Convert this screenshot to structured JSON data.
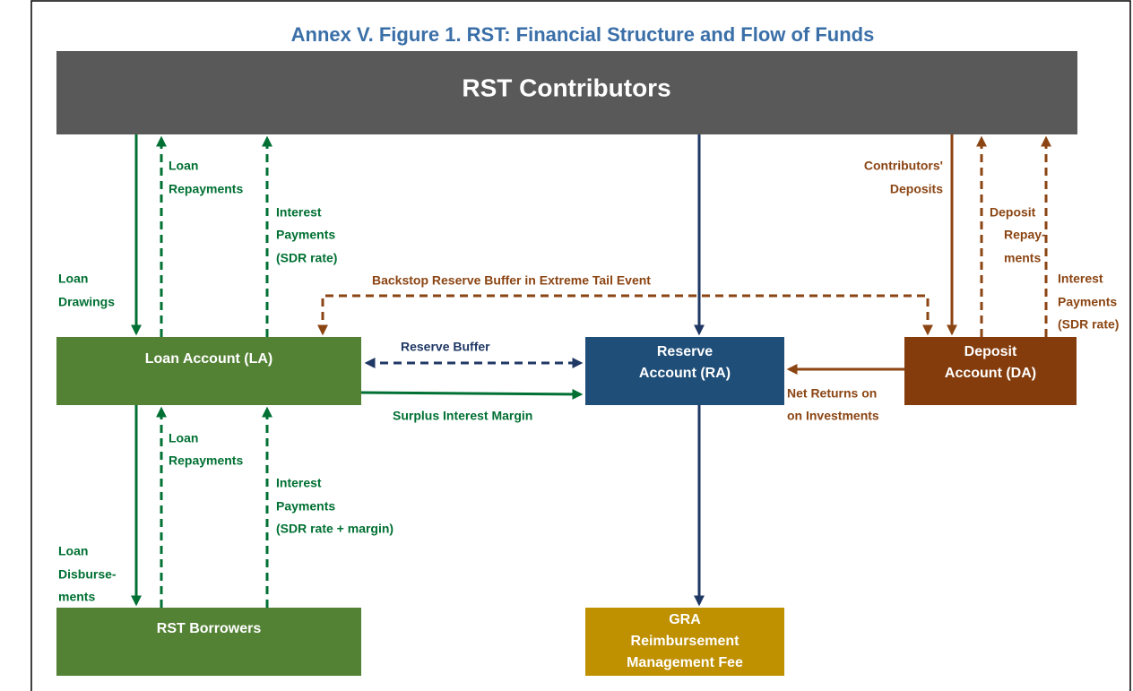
{
  "title": "Annex V. Figure 1. RST: Financial Structure and Flow of Funds",
  "nodes": [
    {
      "label": [
        "RST Contributors"
      ]
    },
    {
      "label": [
        "Loan Account (LA)"
      ]
    },
    {
      "label": [
        "Reserve",
        "Account (RA)"
      ]
    },
    {
      "label": [
        "Deposit",
        "Account (DA)"
      ]
    },
    {
      "label": [
        "RST Borrowers"
      ]
    },
    {
      "label": [
        "GRA",
        "Reimbursement",
        "Management Fee"
      ]
    }
  ],
  "edges": [
    {
      "label": [
        "Loan",
        "Drawings"
      ]
    },
    {
      "label": [
        "Loan",
        "Repayments"
      ]
    },
    {
      "label": [
        "Interest",
        "Payments",
        "(SDR rate)"
      ]
    },
    {
      "label": [
        "Backstop Reserve Buffer in Extreme Tail Event"
      ]
    },
    {
      "label": [
        "Contributors'",
        "Deposits"
      ]
    },
    {
      "label": [
        "Deposit",
        "Repay-",
        "ments"
      ]
    },
    {
      "label": [
        "Interest",
        "Payments",
        "(SDR rate)"
      ]
    },
    {
      "label": [
        "Reserve Buffer"
      ]
    },
    {
      "label": [
        "Surplus Interest Margin"
      ]
    },
    {
      "label": [
        "Net Returns on",
        "on Investments"
      ]
    },
    {
      "label": [
        "Loan",
        "Repayments"
      ]
    },
    {
      "label": [
        "Interest",
        "Payments",
        "(SDR rate + margin)"
      ]
    },
    {
      "label": [
        "Loan",
        "Disburse-",
        "ments"
      ]
    }
  ]
}
